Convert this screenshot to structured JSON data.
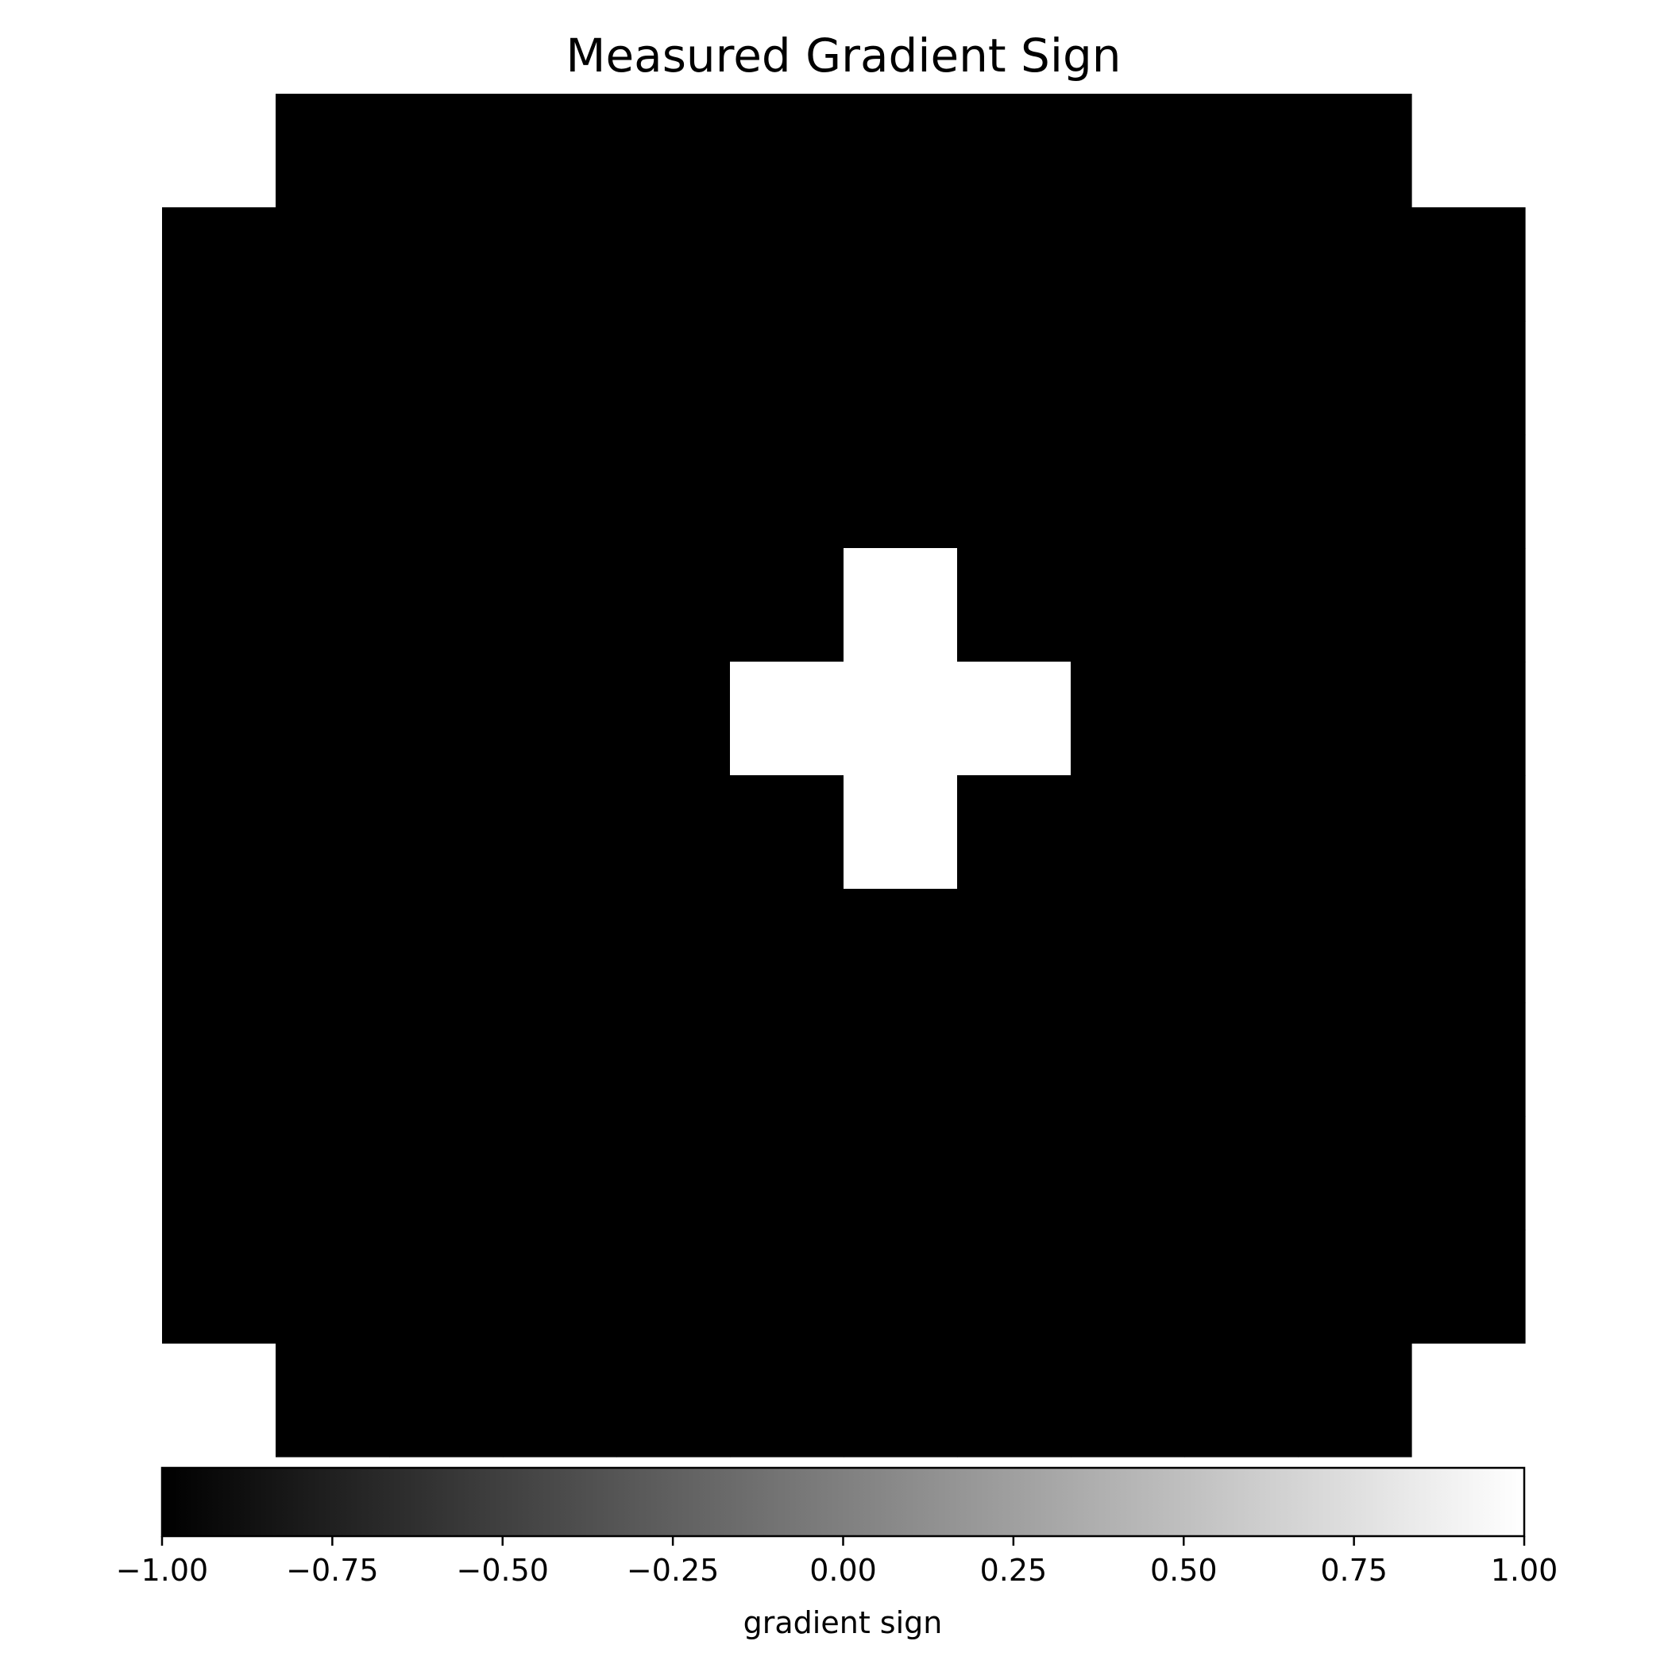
{
  "chart_data": {
    "type": "heatmap",
    "title": "Measured Gradient Sign",
    "grid": false,
    "axes_visible": false,
    "rows": 12,
    "cols": 12,
    "nan_value": null,
    "values": [
      [
        null,
        -1,
        -1,
        -1,
        -1,
        -1,
        -1,
        -1,
        -1,
        -1,
        -1,
        null
      ],
      [
        -1,
        -1,
        -1,
        -1,
        -1,
        -1,
        -1,
        -1,
        -1,
        -1,
        -1,
        -1
      ],
      [
        -1,
        -1,
        -1,
        -1,
        -1,
        -1,
        -1,
        -1,
        -1,
        -1,
        -1,
        -1
      ],
      [
        -1,
        -1,
        -1,
        -1,
        -1,
        -1,
        -1,
        -1,
        -1,
        -1,
        -1,
        -1
      ],
      [
        -1,
        -1,
        -1,
        -1,
        -1,
        -1,
        1,
        -1,
        -1,
        -1,
        -1,
        -1
      ],
      [
        -1,
        -1,
        -1,
        -1,
        -1,
        1,
        1,
        1,
        -1,
        -1,
        -1,
        -1
      ],
      [
        -1,
        -1,
        -1,
        -1,
        -1,
        -1,
        1,
        -1,
        -1,
        -1,
        -1,
        -1
      ],
      [
        -1,
        -1,
        -1,
        -1,
        -1,
        -1,
        -1,
        -1,
        -1,
        -1,
        -1,
        -1
      ],
      [
        -1,
        -1,
        -1,
        -1,
        -1,
        -1,
        -1,
        -1,
        -1,
        -1,
        -1,
        -1
      ],
      [
        -1,
        -1,
        -1,
        -1,
        -1,
        -1,
        -1,
        -1,
        -1,
        -1,
        -1,
        -1
      ],
      [
        -1,
        -1,
        -1,
        -1,
        -1,
        -1,
        -1,
        -1,
        -1,
        -1,
        -1,
        -1
      ],
      [
        null,
        -1,
        -1,
        -1,
        -1,
        -1,
        -1,
        -1,
        -1,
        -1,
        -1,
        null
      ]
    ],
    "colormap": {
      "low_color": "#000000",
      "high_color": "#ffffff"
    },
    "colorbar": {
      "orientation": "horizontal",
      "placement": "bottom",
      "range": [
        -1.0,
        1.0
      ],
      "ticks": [
        -1.0,
        -0.75,
        -0.5,
        -0.25,
        0.0,
        0.25,
        0.5,
        0.75,
        1.0
      ],
      "tick_labels": [
        "−1.00",
        "−0.75",
        "−0.50",
        "−0.25",
        "0.00",
        "0.25",
        "0.50",
        "0.75",
        "1.00"
      ],
      "label": "gradient sign"
    }
  }
}
